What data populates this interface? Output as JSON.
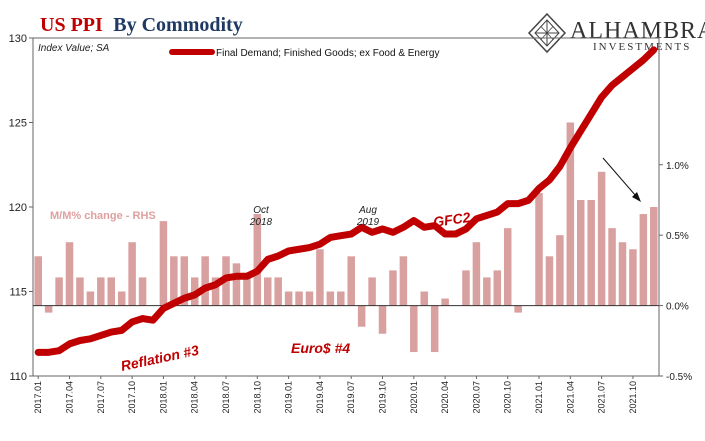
{
  "title": {
    "part1": "US PPI",
    "part2": "By Commodity"
  },
  "logo": {
    "name": "ALHAMBRA",
    "sub": "INVESTMENTS"
  },
  "colors": {
    "line": "#c00000",
    "bars": "#d9a0a0",
    "title_red": "#c00000",
    "title_blue": "#1f3864"
  },
  "chart_data": {
    "type": "bar+line",
    "left_axis": {
      "label": "Index Value; SA",
      "min": 110,
      "max": 130,
      "ticks": [
        "110",
        "115",
        "120",
        "125",
        "130"
      ]
    },
    "right_axis": {
      "min": -0.5,
      "max": 1.9,
      "ticks": [
        "-0.5%",
        "0.0%",
        "0.5%",
        "1.0%"
      ],
      "tick_values": [
        -0.5,
        0.0,
        0.5,
        1.0
      ]
    },
    "x_tick_labels": [
      "2017.01",
      "2017.04",
      "2017.07",
      "2017.10",
      "2018.01",
      "2018.04",
      "2018.07",
      "2018.10",
      "2019.01",
      "2019.04",
      "2019.07",
      "2019.10",
      "2020.01",
      "2020.04",
      "2020.07",
      "2020.10",
      "2021.01",
      "2021.04",
      "2021.07",
      "2021.10"
    ],
    "x": [
      "2017.01",
      "2017.02",
      "2017.03",
      "2017.04",
      "2017.05",
      "2017.06",
      "2017.07",
      "2017.08",
      "2017.09",
      "2017.10",
      "2017.11",
      "2017.12",
      "2018.01",
      "2018.02",
      "2018.03",
      "2018.04",
      "2018.05",
      "2018.06",
      "2018.07",
      "2018.08",
      "2018.09",
      "2018.10",
      "2018.11",
      "2018.12",
      "2019.01",
      "2019.02",
      "2019.03",
      "2019.04",
      "2019.05",
      "2019.06",
      "2019.07",
      "2019.08",
      "2019.09",
      "2019.10",
      "2019.11",
      "2019.12",
      "2020.01",
      "2020.02",
      "2020.03",
      "2020.04",
      "2020.05",
      "2020.06",
      "2020.07",
      "2020.08",
      "2020.09",
      "2020.10",
      "2020.11",
      "2020.12",
      "2021.01",
      "2021.02",
      "2021.03",
      "2021.04",
      "2021.05",
      "2021.06",
      "2021.07",
      "2021.08",
      "2021.09",
      "2021.10",
      "2021.11",
      "2021.12"
    ],
    "series": [
      {
        "name": "Final Demand; Finished Goods; ex Food & Energy",
        "type": "line",
        "axis": "left",
        "values": [
          111.4,
          111.4,
          111.5,
          111.9,
          112.1,
          112.2,
          112.4,
          112.6,
          112.7,
          113.2,
          113.4,
          113.3,
          114.0,
          114.3,
          114.6,
          114.8,
          115.2,
          115.4,
          115.8,
          115.9,
          115.9,
          116.2,
          116.9,
          117.1,
          117.4,
          117.5,
          117.6,
          117.8,
          118.2,
          118.3,
          118.4,
          118.8,
          118.5,
          118.7,
          118.5,
          118.8,
          119.2,
          118.8,
          118.9,
          118.4,
          118.4,
          118.7,
          119.3,
          119.5,
          119.7,
          120.2,
          120.2,
          120.4,
          121.1,
          121.6,
          122.4,
          123.5,
          124.5,
          125.5,
          126.5,
          127.2,
          127.7,
          128.2,
          128.7,
          129.3
        ]
      },
      {
        "name": "M/M% change - RHS",
        "type": "bar",
        "axis": "right",
        "values": [
          0.35,
          -0.05,
          0.2,
          0.45,
          0.2,
          0.1,
          0.2,
          0.2,
          0.1,
          0.45,
          0.2,
          0.0,
          0.6,
          0.35,
          0.35,
          0.2,
          0.35,
          0.2,
          0.35,
          0.3,
          0.2,
          0.65,
          0.2,
          0.2,
          0.1,
          0.1,
          0.1,
          0.4,
          0.1,
          0.1,
          0.35,
          -0.15,
          0.2,
          -0.2,
          0.25,
          0.35,
          -0.33,
          0.1,
          -0.33,
          0.05,
          0.0,
          0.25,
          0.45,
          0.2,
          0.25,
          0.55,
          -0.05,
          0.0,
          0.8,
          0.35,
          0.5,
          1.3,
          0.75,
          0.75,
          0.95,
          0.55,
          0.45,
          0.4,
          0.65,
          0.7
        ]
      }
    ],
    "legend": {
      "placement": "top-center",
      "entries": [
        "Final Demand; Finished Goods; ex Food & Energy"
      ]
    },
    "annotations": {
      "oct2018": {
        "line1": "Oct",
        "line2": "2018"
      },
      "aug2019": {
        "line1": "Aug",
        "line2": "2019"
      },
      "gfc2": "GFC2",
      "reflation": "Reflation #3",
      "euro": "Euro$ #4",
      "mm_label": "M/M% change - RHS"
    },
    "grid": false
  }
}
